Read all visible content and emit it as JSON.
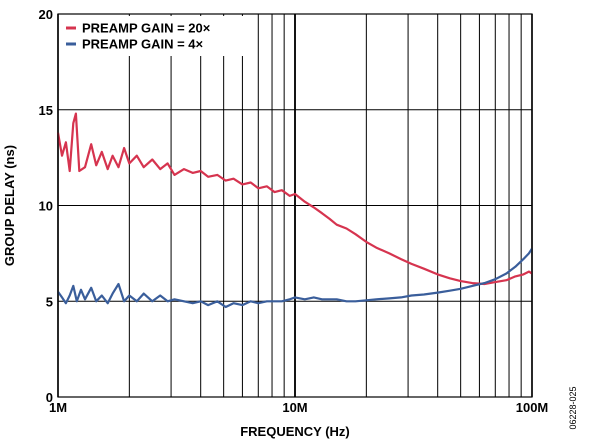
{
  "chart_data": {
    "type": "line",
    "x_scale": "log",
    "xlim": [
      1000000,
      100000000
    ],
    "ylim": [
      0,
      20
    ],
    "xlabel": "FREQUENCY (Hz)",
    "ylabel": "GROUP DELAY (ns)",
    "figure_id": "06228-025",
    "grid": true,
    "legend_position": "top-left",
    "x_ticks": [
      {
        "value": 1000000,
        "label": "1M"
      },
      {
        "value": 10000000,
        "label": "10M"
      },
      {
        "value": 100000000,
        "label": "100M"
      }
    ],
    "y_ticks": [
      {
        "value": 0,
        "label": "0"
      },
      {
        "value": 5,
        "label": "5"
      },
      {
        "value": 10,
        "label": "10"
      },
      {
        "value": 15,
        "label": "15"
      },
      {
        "value": 20,
        "label": "20"
      }
    ],
    "series": [
      {
        "name": "PREAMP GAIN = 20×",
        "color": "#d6344f",
        "points": [
          [
            1000000,
            13.8
          ],
          [
            1040000,
            12.6
          ],
          [
            1080000,
            13.3
          ],
          [
            1120000,
            11.8
          ],
          [
            1160000,
            14.3
          ],
          [
            1190000,
            14.8
          ],
          [
            1230000,
            11.8
          ],
          [
            1300000,
            12.0
          ],
          [
            1380000,
            13.2
          ],
          [
            1450000,
            12.1
          ],
          [
            1530000,
            12.8
          ],
          [
            1620000,
            11.9
          ],
          [
            1700000,
            12.6
          ],
          [
            1800000,
            12.0
          ],
          [
            1900000,
            13.0
          ],
          [
            2000000,
            12.2
          ],
          [
            2150000,
            12.6
          ],
          [
            2300000,
            12.0
          ],
          [
            2500000,
            12.4
          ],
          [
            2700000,
            11.9
          ],
          [
            2900000,
            12.2
          ],
          [
            3100000,
            11.6
          ],
          [
            3400000,
            11.9
          ],
          [
            3700000,
            11.7
          ],
          [
            4000000,
            11.8
          ],
          [
            4300000,
            11.5
          ],
          [
            4700000,
            11.6
          ],
          [
            5100000,
            11.3
          ],
          [
            5500000,
            11.4
          ],
          [
            6000000,
            11.1
          ],
          [
            6500000,
            11.2
          ],
          [
            7000000,
            10.9
          ],
          [
            7600000,
            11.0
          ],
          [
            8200000,
            10.7
          ],
          [
            8800000,
            10.8
          ],
          [
            9500000,
            10.5
          ],
          [
            10000000,
            10.6
          ],
          [
            11000000,
            10.2
          ],
          [
            12000000,
            9.9
          ],
          [
            13000000,
            9.6
          ],
          [
            14000000,
            9.3
          ],
          [
            15000000,
            9.0
          ],
          [
            16500000,
            8.8
          ],
          [
            18000000,
            8.5
          ],
          [
            20000000,
            8.1
          ],
          [
            22000000,
            7.8
          ],
          [
            25000000,
            7.5
          ],
          [
            28000000,
            7.2
          ],
          [
            31000000,
            6.95
          ],
          [
            35000000,
            6.7
          ],
          [
            40000000,
            6.4
          ],
          [
            45000000,
            6.2
          ],
          [
            50000000,
            6.05
          ],
          [
            56000000,
            5.95
          ],
          [
            63000000,
            5.9
          ],
          [
            70000000,
            6.0
          ],
          [
            78000000,
            6.1
          ],
          [
            85000000,
            6.3
          ],
          [
            92000000,
            6.4
          ],
          [
            97000000,
            6.55
          ],
          [
            100000000,
            6.45
          ]
        ]
      },
      {
        "name": "PREAMP GAIN = 4×",
        "color": "#3a5e9b",
        "points": [
          [
            1000000,
            5.5
          ],
          [
            1040000,
            5.2
          ],
          [
            1080000,
            4.9
          ],
          [
            1120000,
            5.3
          ],
          [
            1160000,
            5.8
          ],
          [
            1200000,
            5.0
          ],
          [
            1250000,
            5.6
          ],
          [
            1300000,
            5.1
          ],
          [
            1380000,
            5.7
          ],
          [
            1450000,
            5.0
          ],
          [
            1530000,
            5.3
          ],
          [
            1620000,
            4.9
          ],
          [
            1700000,
            5.4
          ],
          [
            1800000,
            5.9
          ],
          [
            1900000,
            5.0
          ],
          [
            2000000,
            5.3
          ],
          [
            2150000,
            5.0
          ],
          [
            2300000,
            5.4
          ],
          [
            2500000,
            5.0
          ],
          [
            2700000,
            5.3
          ],
          [
            2900000,
            5.0
          ],
          [
            3100000,
            5.1
          ],
          [
            3400000,
            5.0
          ],
          [
            3700000,
            4.9
          ],
          [
            4000000,
            5.0
          ],
          [
            4300000,
            4.8
          ],
          [
            4700000,
            5.0
          ],
          [
            5100000,
            4.7
          ],
          [
            5500000,
            4.9
          ],
          [
            6000000,
            4.8
          ],
          [
            6500000,
            5.0
          ],
          [
            7000000,
            4.9
          ],
          [
            7600000,
            5.0
          ],
          [
            8200000,
            5.0
          ],
          [
            8800000,
            5.0
          ],
          [
            9500000,
            5.1
          ],
          [
            10000000,
            5.2
          ],
          [
            11000000,
            5.1
          ],
          [
            12000000,
            5.2
          ],
          [
            13000000,
            5.1
          ],
          [
            14000000,
            5.1
          ],
          [
            15000000,
            5.1
          ],
          [
            16500000,
            5.0
          ],
          [
            18000000,
            5.0
          ],
          [
            20000000,
            5.05
          ],
          [
            22000000,
            5.1
          ],
          [
            25000000,
            5.15
          ],
          [
            28000000,
            5.2
          ],
          [
            31000000,
            5.3
          ],
          [
            35000000,
            5.35
          ],
          [
            40000000,
            5.45
          ],
          [
            45000000,
            5.55
          ],
          [
            50000000,
            5.65
          ],
          [
            56000000,
            5.8
          ],
          [
            63000000,
            5.95
          ],
          [
            70000000,
            6.15
          ],
          [
            78000000,
            6.45
          ],
          [
            85000000,
            6.8
          ],
          [
            92000000,
            7.2
          ],
          [
            97000000,
            7.5
          ],
          [
            100000000,
            7.75
          ]
        ]
      }
    ]
  }
}
